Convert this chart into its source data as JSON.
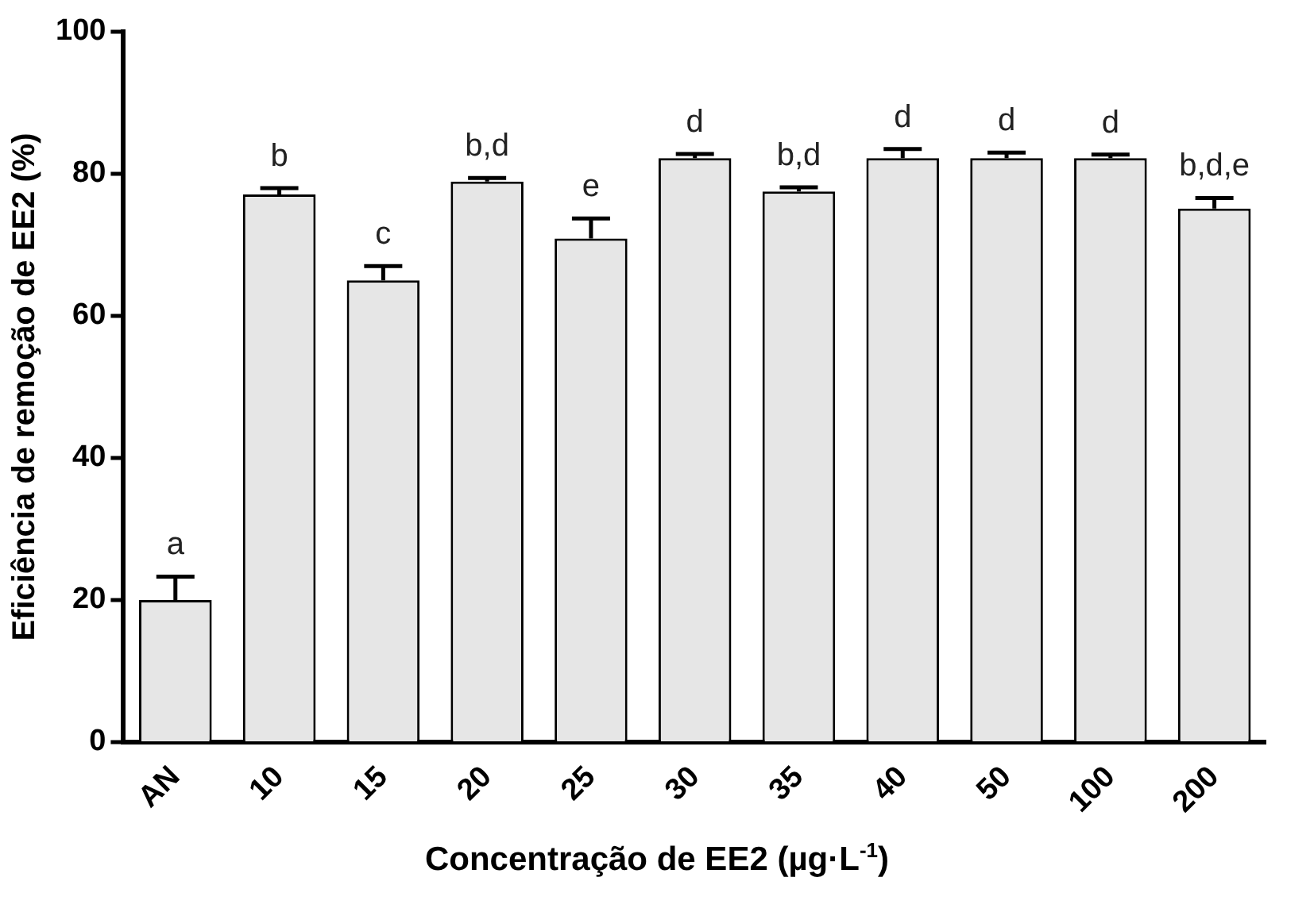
{
  "chart_data": {
    "type": "bar",
    "xlabel": "Concentração de EE2 (µg·L$^{-1}$)",
    "ylabel": "Eficiência de remoção de EE2 (%)",
    "categories": [
      "AN",
      "10",
      "15",
      "20",
      "25",
      "30",
      "35",
      "40",
      "50",
      "100",
      "200"
    ],
    "values": [
      20.0,
      77.1,
      65.0,
      78.9,
      70.9,
      82.2,
      77.5,
      82.2,
      82.2,
      82.2,
      75.1
    ],
    "errors": [
      3.3,
      0.9,
      2.0,
      0.5,
      2.8,
      0.6,
      0.6,
      1.3,
      0.8,
      0.5,
      1.5
    ],
    "color": "#e6e6e6",
    "ylim": [
      0,
      100
    ],
    "yticks": [
      0,
      20,
      40,
      60,
      80,
      100
    ],
    "grid": false,
    "legend": false,
    "annotations": [
      {
        "text": "a",
        "x": "AN",
        "y": 23.3
      },
      {
        "text": "b",
        "x": "10",
        "y": 78.0
      },
      {
        "text": "c",
        "x": "15",
        "y": 67.0
      },
      {
        "text": "b,d",
        "x": "20",
        "y": 79.4
      },
      {
        "text": "e",
        "x": "25",
        "y": 73.7
      },
      {
        "text": "d",
        "x": "30",
        "y": 82.8
      },
      {
        "text": "b,d",
        "x": "35",
        "y": 78.1
      },
      {
        "text": "d",
        "x": "40",
        "y": 83.5
      },
      {
        "text": "d",
        "x": "50",
        "y": 83.0
      },
      {
        "text": "d",
        "x": "100",
        "y": 82.7
      },
      {
        "text": "b,d,e",
        "x": "200",
        "y": 76.6
      }
    ]
  }
}
